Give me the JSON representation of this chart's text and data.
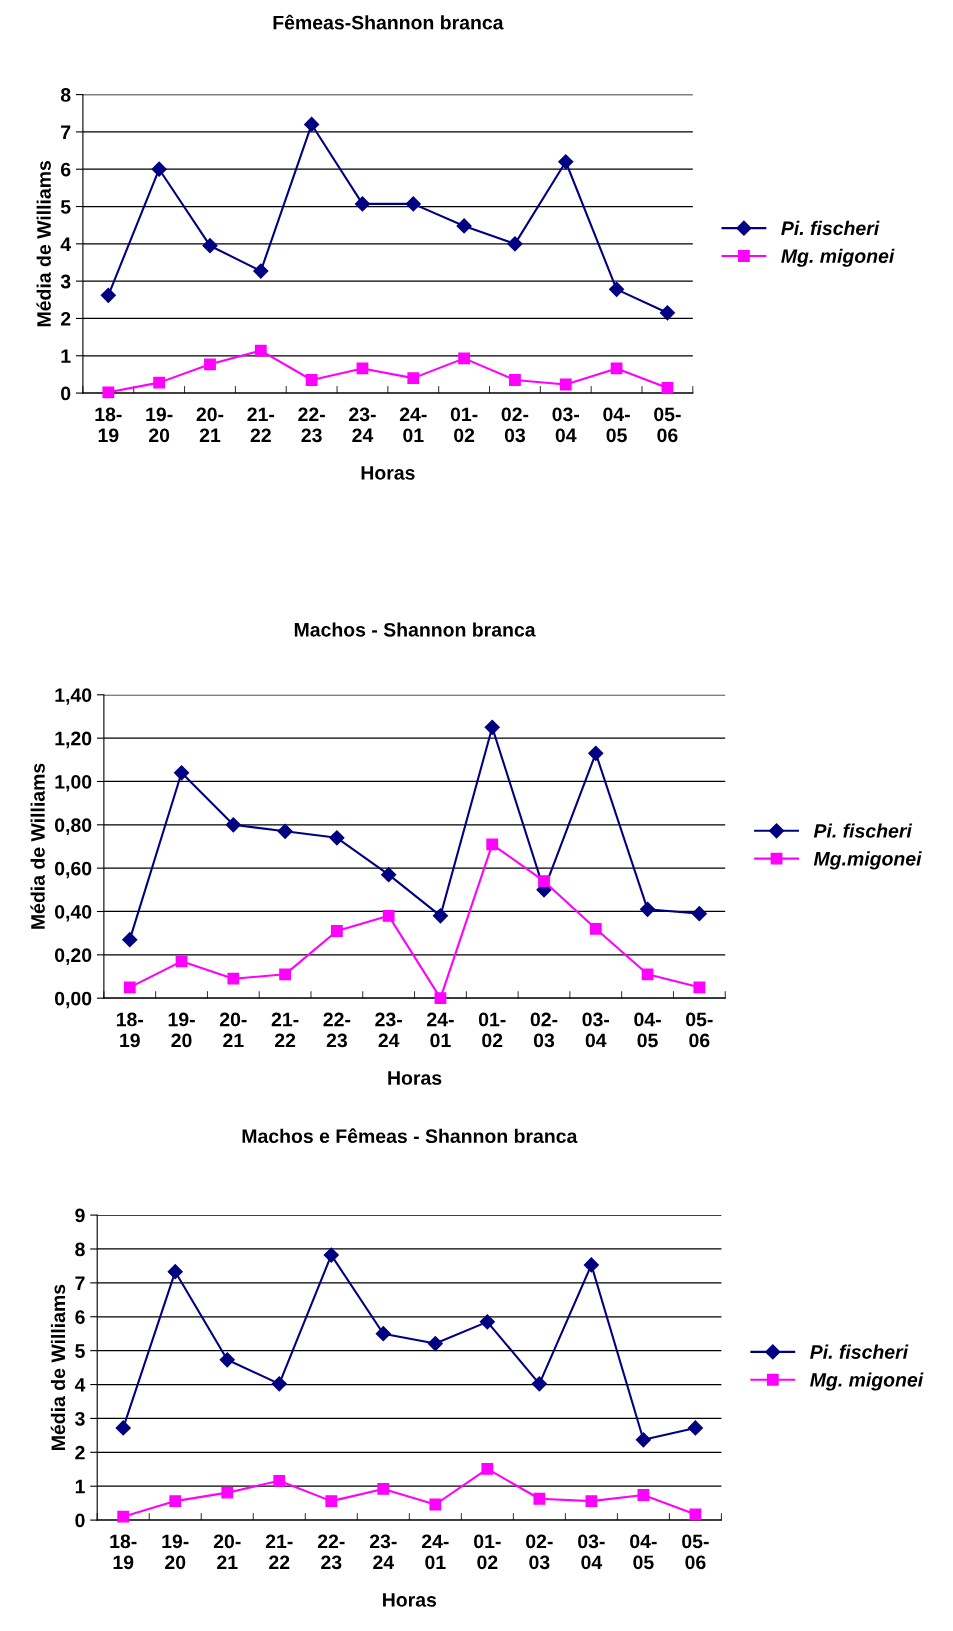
{
  "chart_data": [
    {
      "type": "line",
      "title": "Fêmeas-Shannon branca",
      "xlabel": "Horas",
      "ylabel": "Média de Williams",
      "categories": [
        "18-\n19",
        "19-\n20",
        "20-\n21",
        "21-\n22",
        "22-\n23",
        "23-\n24",
        "24-\n01",
        "01-\n02",
        "02-\n03",
        "03-\n04",
        "04-\n05",
        "05-\n06"
      ],
      "series": [
        {
          "name": "Pi. fischeri",
          "color": "#000080",
          "marker": "diamond",
          "values": [
            2.62,
            6.0,
            3.95,
            3.27,
            7.2,
            5.07,
            5.07,
            4.48,
            4.0,
            6.2,
            2.78,
            2.15
          ]
        },
        {
          "name": "Mg. migonei",
          "color": "#ff00ff",
          "marker": "square",
          "values": [
            0.02,
            0.28,
            0.77,
            1.14,
            0.35,
            0.66,
            0.4,
            0.93,
            0.35,
            0.23,
            0.66,
            0.14
          ]
        }
      ],
      "ylim": [
        0,
        8
      ],
      "yticks": [
        0,
        1,
        2,
        3,
        4,
        5,
        6,
        7,
        8
      ],
      "grid": "y",
      "legend": "right"
    },
    {
      "type": "line",
      "title": "Machos - Shannon branca",
      "xlabel": "Horas",
      "ylabel": "Média de Williams",
      "categories": [
        "18-\n19",
        "19-\n20",
        "20-\n21",
        "21-\n22",
        "22-\n23",
        "23-\n24",
        "24-\n01",
        "01-\n02",
        "02-\n03",
        "03-\n04",
        "04-\n05",
        "05-\n06"
      ],
      "series": [
        {
          "name": "Pi. fischeri",
          "color": "#000080",
          "marker": "diamond",
          "values": [
            0.27,
            1.04,
            0.8,
            0.77,
            0.74,
            0.57,
            0.38,
            1.25,
            0.5,
            1.13,
            0.41,
            0.39
          ]
        },
        {
          "name": "Mg.migonei",
          "color": "#ff00ff",
          "marker": "square",
          "values": [
            0.05,
            0.17,
            0.09,
            0.11,
            0.31,
            0.38,
            0.0,
            0.71,
            0.54,
            0.32,
            0.11,
            0.05
          ]
        }
      ],
      "ylim": [
        0,
        1.4
      ],
      "yticks": [
        {
          "value": 0,
          "label": "0,00"
        },
        {
          "value": 0.2,
          "label": "0,20"
        },
        {
          "value": 0.4,
          "label": "0,40"
        },
        {
          "value": 0.6,
          "label": "0,60"
        },
        {
          "value": 0.8,
          "label": "0,80"
        },
        {
          "value": 1.0,
          "label": "1,00"
        },
        {
          "value": 1.2,
          "label": "1,20"
        },
        {
          "value": 1.4,
          "label": "1,40"
        }
      ],
      "grid": "y",
      "legend": "right"
    },
    {
      "type": "line",
      "title": "Machos e Fêmeas - Shannon branca",
      "xlabel": "Horas",
      "ylabel": "Média de Williams",
      "categories": [
        "18-\n19",
        "19-\n20",
        "20-\n21",
        "21-\n22",
        "22-\n23",
        "23-\n24",
        "24-\n01",
        "01-\n02",
        "02-\n03",
        "03-\n04",
        "04-\n05",
        "05-\n06"
      ],
      "series": [
        {
          "name": "Pi. fischeri",
          "color": "#000080",
          "marker": "diamond",
          "values": [
            2.72,
            7.33,
            4.73,
            4.02,
            7.82,
            5.5,
            5.21,
            5.85,
            4.02,
            7.53,
            2.37,
            2.72
          ]
        },
        {
          "name": "Mg. migonei",
          "color": "#ff00ff",
          "marker": "square",
          "values": [
            0.1,
            0.56,
            0.81,
            1.16,
            0.56,
            0.92,
            0.46,
            1.51,
            0.63,
            0.56,
            0.74,
            0.17
          ]
        }
      ],
      "ylim": [
        0,
        9
      ],
      "yticks": [
        0,
        1,
        2,
        3,
        4,
        5,
        6,
        7,
        8,
        9
      ],
      "grid": "y",
      "legend": "right"
    }
  ]
}
